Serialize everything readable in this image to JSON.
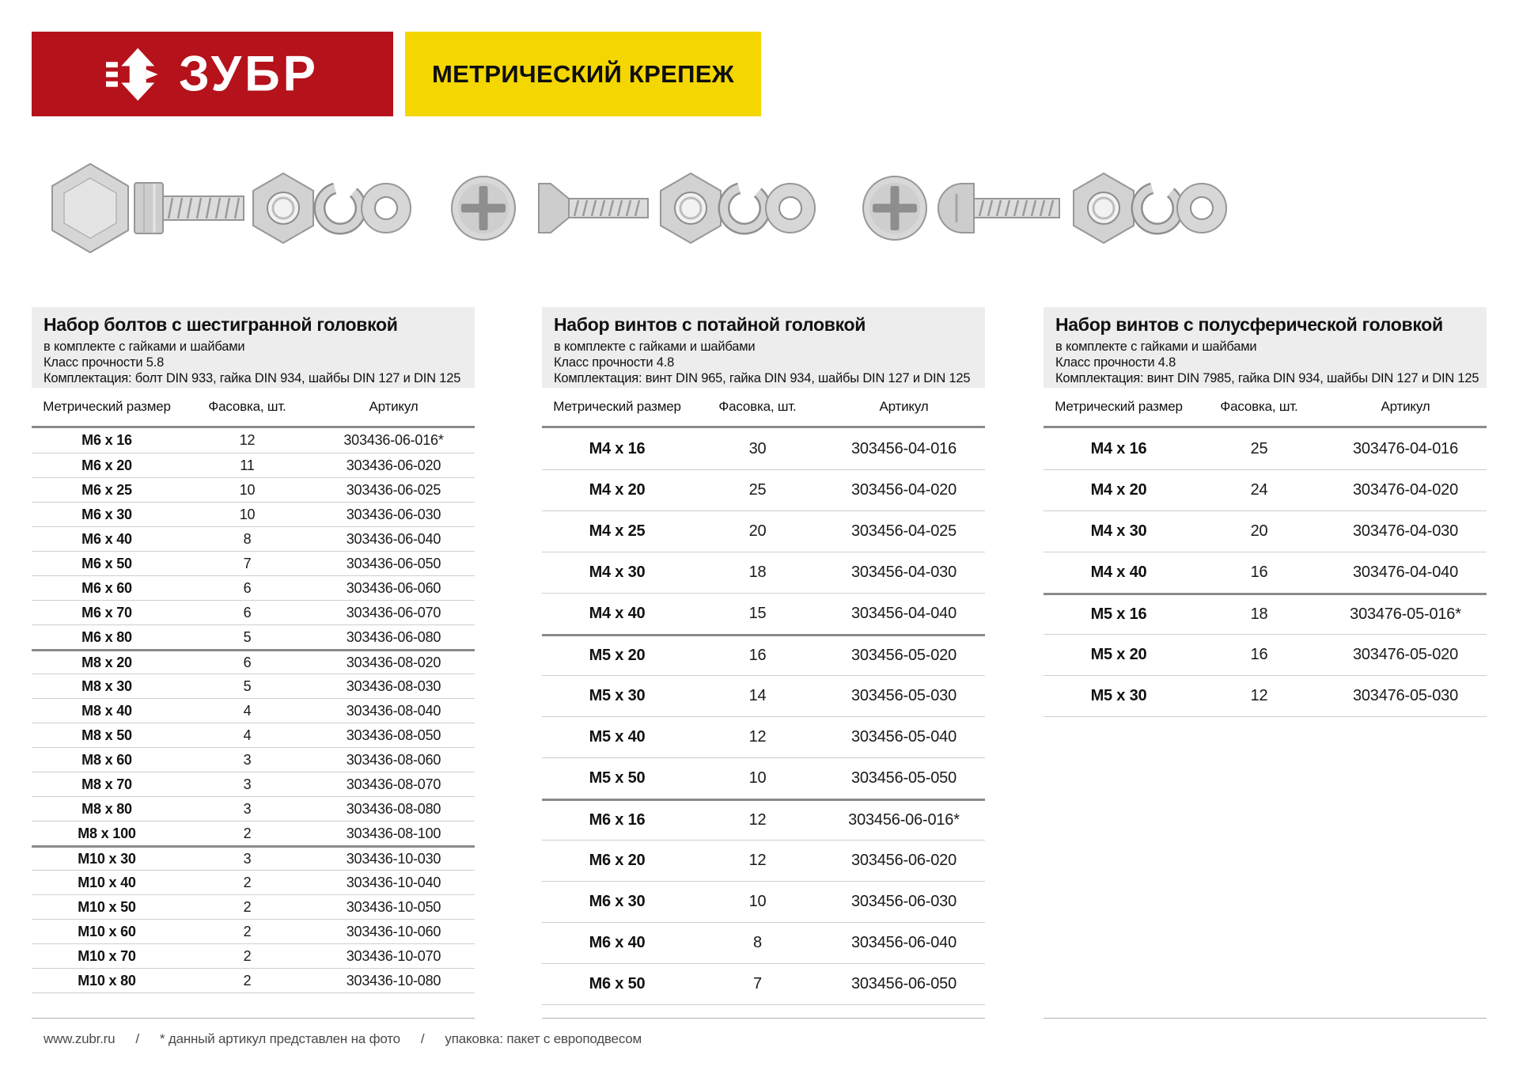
{
  "theme": {
    "brand_red": "#b5121b",
    "banner_yellow": "#f4d600",
    "info_gray": "#ededed"
  },
  "header": {
    "brand": "ЗУБР",
    "banner": "МЕТРИЧЕСКИЙ КРЕПЕЖ"
  },
  "sections": [
    {
      "title": "Набор болтов с шестигранной головкой",
      "subtitle": "в комплекте с гайками и шайбами",
      "strength": "Класс прочности 5.8",
      "contents": "Комплектация: болт DIN 933, гайка DIN 934, шайбы DIN 127 и DIN 125",
      "columns": [
        "Метрический размер",
        "Фасовка, шт.",
        "Артикул"
      ],
      "photo_items": [
        "hex-bolt-head-photo",
        "hex-bolt-photo",
        "hex-nut-photo",
        "spring-washer-photo",
        "flat-washer-photo"
      ],
      "groups": [
        [
          {
            "size": "M6 x 16",
            "qty": "12",
            "article": "303436-06-016*"
          },
          {
            "size": "M6 x 20",
            "qty": "11",
            "article": "303436-06-020"
          },
          {
            "size": "M6 x 25",
            "qty": "10",
            "article": "303436-06-025"
          },
          {
            "size": "M6 x 30",
            "qty": "10",
            "article": "303436-06-030"
          },
          {
            "size": "M6 x 40",
            "qty": "8",
            "article": "303436-06-040"
          },
          {
            "size": "M6 x 50",
            "qty": "7",
            "article": "303436-06-050"
          },
          {
            "size": "M6 x 60",
            "qty": "6",
            "article": "303436-06-060"
          },
          {
            "size": "M6 x 70",
            "qty": "6",
            "article": "303436-06-070"
          },
          {
            "size": "M6 x 80",
            "qty": "5",
            "article": "303436-06-080"
          }
        ],
        [
          {
            "size": "M8 x 20",
            "qty": "6",
            "article": "303436-08-020"
          },
          {
            "size": "M8 x 30",
            "qty": "5",
            "article": "303436-08-030"
          },
          {
            "size": "M8 x 40",
            "qty": "4",
            "article": "303436-08-040"
          },
          {
            "size": "M8 x 50",
            "qty": "4",
            "article": "303436-08-050"
          },
          {
            "size": "M8 x 60",
            "qty": "3",
            "article": "303436-08-060"
          },
          {
            "size": "M8 x 70",
            "qty": "3",
            "article": "303436-08-070"
          },
          {
            "size": "M8 x 80",
            "qty": "3",
            "article": "303436-08-080"
          },
          {
            "size": "M8 x 100",
            "qty": "2",
            "article": "303436-08-100"
          }
        ],
        [
          {
            "size": "M10 x 30",
            "qty": "3",
            "article": "303436-10-030"
          },
          {
            "size": "M10 x 40",
            "qty": "2",
            "article": "303436-10-040"
          },
          {
            "size": "M10 x 50",
            "qty": "2",
            "article": "303436-10-050"
          },
          {
            "size": "M10 x 60",
            "qty": "2",
            "article": "303436-10-060"
          },
          {
            "size": "M10 x 70",
            "qty": "2",
            "article": "303436-10-070"
          },
          {
            "size": "M10 x 80",
            "qty": "2",
            "article": "303436-10-080"
          }
        ]
      ]
    },
    {
      "title": "Набор винтов с потайной головкой",
      "subtitle": "в комплекте с гайками и шайбами",
      "strength": "Класс прочности 4.8",
      "contents": "Комплектация: винт DIN 965, гайка DIN 934, шайбы DIN 127 и DIN 125",
      "columns": [
        "Метрический размер",
        "Фасовка, шт.",
        "Артикул"
      ],
      "photo_items": [
        "countersunk-screw-head-photo",
        "countersunk-screw-photo",
        "hex-nut-photo",
        "spring-washer-photo",
        "flat-washer-photo"
      ],
      "groups": [
        [
          {
            "size": "M4 x 16",
            "qty": "30",
            "article": "303456-04-016"
          },
          {
            "size": "M4 x 20",
            "qty": "25",
            "article": "303456-04-020"
          },
          {
            "size": "M4 x 25",
            "qty": "20",
            "article": "303456-04-025"
          },
          {
            "size": "M4 x 30",
            "qty": "18",
            "article": "303456-04-030"
          },
          {
            "size": "M4 x 40",
            "qty": "15",
            "article": "303456-04-040"
          }
        ],
        [
          {
            "size": "M5 x 20",
            "qty": "16",
            "article": "303456-05-020"
          },
          {
            "size": "M5 x 30",
            "qty": "14",
            "article": "303456-05-030"
          },
          {
            "size": "M5 x 40",
            "qty": "12",
            "article": "303456-05-040"
          },
          {
            "size": "M5 x 50",
            "qty": "10",
            "article": "303456-05-050"
          }
        ],
        [
          {
            "size": "M6 x 16",
            "qty": "12",
            "article": "303456-06-016*"
          },
          {
            "size": "M6 x 20",
            "qty": "12",
            "article": "303456-06-020"
          },
          {
            "size": "M6 x 30",
            "qty": "10",
            "article": "303456-06-030"
          },
          {
            "size": "M6 x 40",
            "qty": "8",
            "article": "303456-06-040"
          },
          {
            "size": "M6 x 50",
            "qty": "7",
            "article": "303456-06-050"
          }
        ]
      ]
    },
    {
      "title": "Набор винтов с полусферической головкой",
      "subtitle": "в комплекте с гайками и шайбами",
      "strength": "Класс прочности 4.8",
      "contents": "Комплектация: винт DIN 7985, гайка DIN 934, шайбы DIN 127 и DIN 125",
      "columns": [
        "Метрический размер",
        "Фасовка, шт.",
        "Артикул"
      ],
      "photo_items": [
        "pan-head-screw-head-photo",
        "pan-head-screw-photo",
        "hex-nut-photo",
        "spring-washer-photo",
        "flat-washer-photo"
      ],
      "groups": [
        [
          {
            "size": "M4 x 16",
            "qty": "25",
            "article": "303476-04-016"
          },
          {
            "size": "M4 x 20",
            "qty": "24",
            "article": "303476-04-020"
          },
          {
            "size": "M4 x 30",
            "qty": "20",
            "article": "303476-04-030"
          },
          {
            "size": "M4 x 40",
            "qty": "16",
            "article": "303476-04-040"
          }
        ],
        [
          {
            "size": "M5 x 16",
            "qty": "18",
            "article": "303476-05-016*"
          },
          {
            "size": "M5 x 20",
            "qty": "16",
            "article": "303476-05-020"
          },
          {
            "size": "M5 x 30",
            "qty": "12",
            "article": "303476-05-030"
          }
        ]
      ]
    }
  ],
  "footer": {
    "site": "www.zubr.ru",
    "sep": "/",
    "note_photo": "* данный артикул представлен на фото",
    "note_packaging": "упаковка: пакет с европодвесом"
  }
}
